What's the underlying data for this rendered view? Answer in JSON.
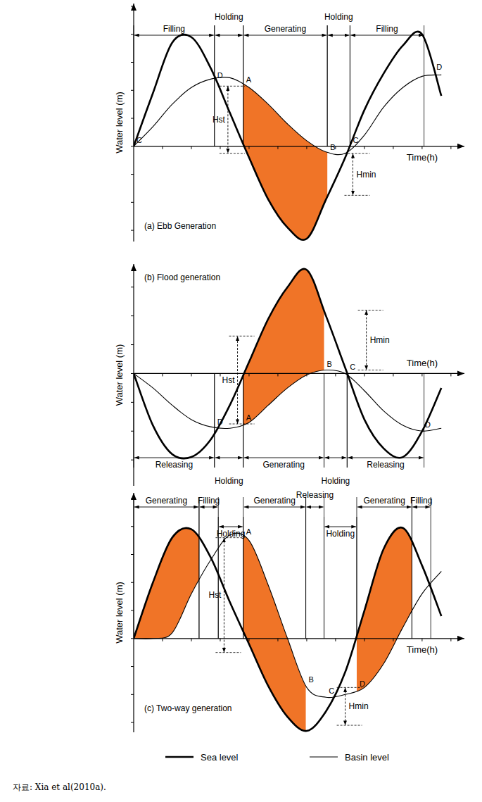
{
  "chart_data": [
    {
      "type": "line",
      "title": "(a) Ebb Generation",
      "x_label": "Time(h)",
      "y_label": "Water level (m)",
      "tick_labels": false,
      "xlim": [
        0,
        17.2
      ],
      "ylim": [
        -3.4,
        5.1
      ],
      "xticks": [
        1.5,
        3,
        4.5,
        6,
        7.5,
        9,
        10.5,
        12,
        13.5,
        15,
        16.5
      ],
      "yticks": [
        -3,
        -2,
        -1,
        0,
        1,
        2,
        3,
        4,
        5
      ],
      "x": [
        0,
        1,
        2,
        3,
        4,
        5,
        6,
        7,
        8,
        9,
        10,
        11,
        12,
        13,
        14,
        15,
        16
      ],
      "series": [
        {
          "color": "#000000",
          "values": [
            0,
            1.9,
            3.7,
            3.9,
            2.8,
            1.2,
            -0.4,
            -1.9,
            -2.9,
            -3.3,
            -1.9,
            -0.4,
            1.3,
            2.6,
            3.6,
            4.0,
            1.8
          ]
        },
        {
          "color": "#000000",
          "values": [
            0,
            0.7,
            1.5,
            2.1,
            2.4,
            2.45,
            2.1,
            1.5,
            0.8,
            0.2,
            -0.2,
            -0.25,
            0.4,
            1.4,
            2.1,
            2.5,
            2.55
          ]
        }
      ],
      "fills": [
        {
          "from": 5.7,
          "to": 10.07,
          "color": "#f07427"
        }
      ],
      "phases": [
        {
          "label": "Filling",
          "from": 0,
          "to": 4.2
        },
        {
          "label": "Holding",
          "from": 4.2,
          "to": 5.7
        },
        {
          "label": "Generating",
          "from": 5.7,
          "to": 10.07
        },
        {
          "label": "Holding",
          "from": 10.07,
          "to": 11.25
        },
        {
          "label": "Filling",
          "from": 11.25,
          "to": 15.1
        }
      ],
      "points": [
        {
          "label": "C",
          "x": 0,
          "y": 0
        },
        {
          "label": "D",
          "x": 4.2,
          "y": 2.3
        },
        {
          "label": "A",
          "x": 5.7,
          "y": 2.15
        },
        {
          "label": "B",
          "x": 10.07,
          "y": -0.25
        },
        {
          "label": "C",
          "x": 11.25,
          "y": 0
        },
        {
          "label": "D",
          "x": 15.6,
          "y": 2.6
        }
      ],
      "annotations": [
        {
          "text": "Hst",
          "x": 4.9,
          "y1": 2.15,
          "y2": -0.25
        },
        {
          "text": "Hmin",
          "x": 11.4,
          "y1": -0.25,
          "y2": -1.75
        }
      ]
    },
    {
      "type": "line",
      "title": "(b) Flood generation",
      "x_label": "Time(h)",
      "y_label": "Water level (m)",
      "tick_labels": false,
      "xlim": [
        0,
        17.2
      ],
      "ylim": [
        -3.9,
        3.8
      ],
      "xticks": [
        1.5,
        3,
        4.5,
        6,
        7.5,
        9,
        10.5,
        12,
        13.5,
        15,
        16.5
      ],
      "yticks": [
        -3,
        -2,
        -1,
        0,
        1,
        2,
        3
      ],
      "x": [
        0,
        1,
        2,
        3,
        4,
        5,
        6,
        7,
        8,
        9,
        10,
        11,
        12,
        13,
        14,
        15,
        16
      ],
      "series": [
        {
          "color": "#000000",
          "values": [
            0,
            -1.8,
            -2.8,
            -2.9,
            -2.3,
            -1.1,
            0.4,
            1.9,
            3.0,
            3.6,
            2.0,
            0.2,
            -1.6,
            -2.6,
            -2.9,
            -2.0,
            -0.5
          ]
        },
        {
          "color": "#000000",
          "values": [
            0,
            -0.5,
            -1.1,
            -1.6,
            -1.85,
            -1.9,
            -1.7,
            -1.1,
            -0.5,
            -0.05,
            0.12,
            0.0,
            -0.6,
            -1.3,
            -1.8,
            -2.0,
            -1.9
          ]
        }
      ],
      "fills": [
        {
          "from": 5.7,
          "to": 9.9,
          "color": "#f07427"
        }
      ],
      "phases": [
        {
          "label": "Releasing",
          "from": 0,
          "to": 4.2
        },
        {
          "label": "Holding",
          "from": 4.2,
          "to": 5.7
        },
        {
          "label": "Generating",
          "from": 5.7,
          "to": 9.9
        },
        {
          "label": "Holding",
          "from": 9.9,
          "to": 11.1
        },
        {
          "label": "Releasing",
          "from": 11.1,
          "to": 15.1
        }
      ],
      "points": [
        {
          "label": "D",
          "x": 4.2,
          "y": -1.9
        },
        {
          "label": "A",
          "x": 5.7,
          "y": -1.75
        },
        {
          "label": "B",
          "x": 9.9,
          "y": 0.12
        },
        {
          "label": "C",
          "x": 11.1,
          "y": 0
        },
        {
          "label": "D",
          "x": 15.0,
          "y": -2.0
        }
      ],
      "annotations": [
        {
          "text": "Hst",
          "x": 5.4,
          "y1": -1.75,
          "y2": 1.3
        },
        {
          "text": "Hmin",
          "x": 12.1,
          "y1": 2.2,
          "y2": 0.12
        }
      ]
    },
    {
      "type": "line",
      "title": "(c) Two-way generation",
      "x_label": "Time(h)",
      "y_label": "Water level (m)",
      "tick_labels": false,
      "legend": "bottom",
      "xlim": [
        0,
        17.2
      ],
      "ylim": [
        -3.35,
        5.2
      ],
      "xticks": [
        1.5,
        3,
        4.5,
        6,
        7.5,
        9,
        10.5,
        12,
        13.5,
        15,
        16.5
      ],
      "yticks": [
        -3,
        -2,
        -1,
        0,
        1,
        2,
        3,
        4,
        5
      ],
      "x": [
        0,
        1,
        2,
        3,
        4,
        5,
        6,
        7,
        8,
        9,
        10,
        11,
        12,
        13,
        14,
        15,
        16
      ],
      "series": [
        {
          "name": "Sea level",
          "color": "#000000",
          "values": [
            0,
            2.0,
            3.6,
            3.9,
            2.9,
            1.3,
            -0.2,
            -1.7,
            -2.8,
            -3.3,
            -2.6,
            -1.2,
            1.0,
            3.2,
            3.95,
            2.6,
            0.8
          ]
        },
        {
          "name": "Basin level",
          "color": "#000000",
          "values": [
            0,
            0,
            0.2,
            1.6,
            2.8,
            3.7,
            3.5,
            1.9,
            0.0,
            -1.75,
            -2.1,
            -2.0,
            -1.75,
            -0.9,
            0.4,
            1.6,
            2.4
          ]
        }
      ],
      "fills": [
        {
          "from": 0,
          "to": 3.4,
          "color": "#f07427"
        },
        {
          "from": 5.7,
          "to": 8.95,
          "color": "#f07427"
        },
        {
          "from": 11.6,
          "to": 14.47,
          "color": "#f07427"
        }
      ],
      "phases": [
        {
          "label": "Generating",
          "from": 0,
          "to": 3.4
        },
        {
          "label": "Filling",
          "from": 3.4,
          "to": 4.4
        },
        {
          "label": "Holding",
          "from": 4.4,
          "to": 5.7
        },
        {
          "label": "Generating",
          "from": 5.7,
          "to": 8.95
        },
        {
          "label": "Releasing",
          "from": 8.95,
          "to": 9.9
        },
        {
          "label": "Holding",
          "from": 9.9,
          "to": 11.6
        },
        {
          "label": "Generating",
          "from": 11.6,
          "to": 14.47
        },
        {
          "label": "Filling",
          "from": 14.47,
          "to": 15.45
        }
      ],
      "points": [
        {
          "label": "A",
          "x": 5.7,
          "y": 3.6
        },
        {
          "label": "B",
          "x": 8.95,
          "y": -1.7
        },
        {
          "label": "C",
          "x": 10.0,
          "y": -2.1
        },
        {
          "label": "D",
          "x": 11.6,
          "y": -1.85
        }
      ],
      "annotations": [
        {
          "text": "Hst",
          "x": 4.7,
          "y1": 3.6,
          "y2": -0.5
        },
        {
          "text": "Hmin",
          "x": 11.0,
          "y1": -1.75,
          "y2": -3.1
        }
      ]
    }
  ],
  "source": "자료: Xia et al(2010a)."
}
